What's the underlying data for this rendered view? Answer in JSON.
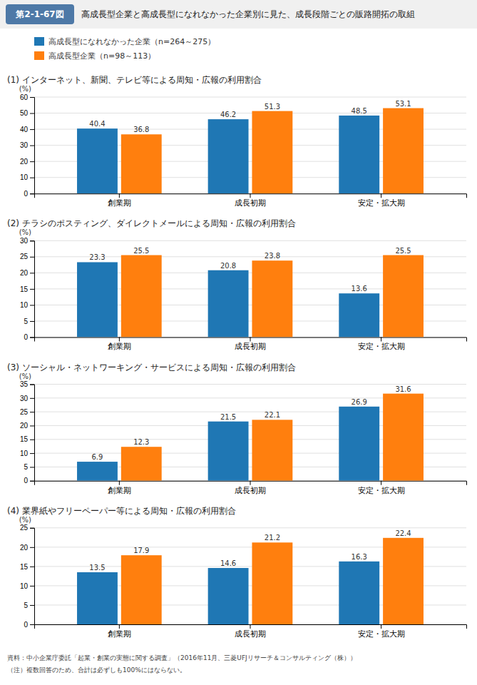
{
  "title": "高成長型企業と高成長型になれなかった企業別に見た、成長段階ごとの販路開拓の取組",
  "annotations": [
    "第2-1-67図",
    "資料：中小企業庁委託「起業・創業の実態に関する調査」（2016年11月、三菱UFJリサーチ＆コンサルティング（株））",
    "（注）複数回答のため、合計は必ずしも100%にはならない。"
  ],
  "chart_data": [
    {
      "type": "bar",
      "title": "(1) インターネット、新聞、テレビ等による周知・広報の利用割合",
      "y_label": "(%)",
      "categories": [
        "創業期",
        "成長初期",
        "安定・拡大期"
      ],
      "series": [
        {
          "name": "高成長型になれなかった企業（n=264～275）",
          "values": [
            40.4,
            46.2,
            48.5
          ]
        },
        {
          "name": "高成長型企業（n=98～113）",
          "values": [
            36.8,
            51.3,
            53.1
          ]
        }
      ],
      "ylim": [
        0,
        60
      ],
      "yticks": [
        0,
        10,
        20,
        30,
        40,
        50,
        60
      ],
      "grid": true,
      "data_labels": true
    },
    {
      "type": "bar",
      "title": "(2) チラシのポスティング、ダイレクトメールによる周知・広報の利用割合",
      "y_label": "(%)",
      "categories": [
        "創業期",
        "成長初期",
        "安定・拡大期"
      ],
      "series": [
        {
          "name": "高成長型になれなかった企業（n=264～275）",
          "values": [
            23.3,
            20.8,
            13.6
          ]
        },
        {
          "name": "高成長型企業（n=98～113）",
          "values": [
            25.5,
            23.8,
            25.5
          ]
        }
      ],
      "ylim": [
        0,
        30
      ],
      "yticks": [
        0,
        5,
        10,
        15,
        20,
        25,
        30
      ],
      "grid": true,
      "data_labels": true
    },
    {
      "type": "bar",
      "title": "(3) ソーシャル・ネットワーキング・サービスによる周知・広報の利用割合",
      "y_label": "(%)",
      "categories": [
        "創業期",
        "成長初期",
        "安定・拡大期"
      ],
      "series": [
        {
          "name": "高成長型になれなかった企業（n=264～275）",
          "values": [
            6.9,
            21.5,
            26.9
          ]
        },
        {
          "name": "高成長型企業（n=98～113）",
          "values": [
            12.3,
            22.1,
            31.6
          ]
        }
      ],
      "ylim": [
        0,
        35
      ],
      "yticks": [
        0,
        5,
        10,
        15,
        20,
        25,
        30,
        35
      ],
      "grid": true,
      "data_labels": true
    },
    {
      "type": "bar",
      "title": "(4) 業界紙やフリーペーパー等による周知・広報の利用割合",
      "y_label": "(%)",
      "categories": [
        "創業期",
        "成長初期",
        "安定・拡大期"
      ],
      "series": [
        {
          "name": "高成長型になれなかった企業（n=264～275）",
          "values": [
            13.5,
            14.6,
            16.3
          ]
        },
        {
          "name": "高成長型企業（n=98～113）",
          "values": [
            17.9,
            21.2,
            22.4
          ]
        }
      ],
      "ylim": [
        0,
        25
      ],
      "yticks": [
        0,
        5,
        10,
        15,
        20,
        25
      ],
      "grid": true,
      "data_labels": true
    }
  ]
}
